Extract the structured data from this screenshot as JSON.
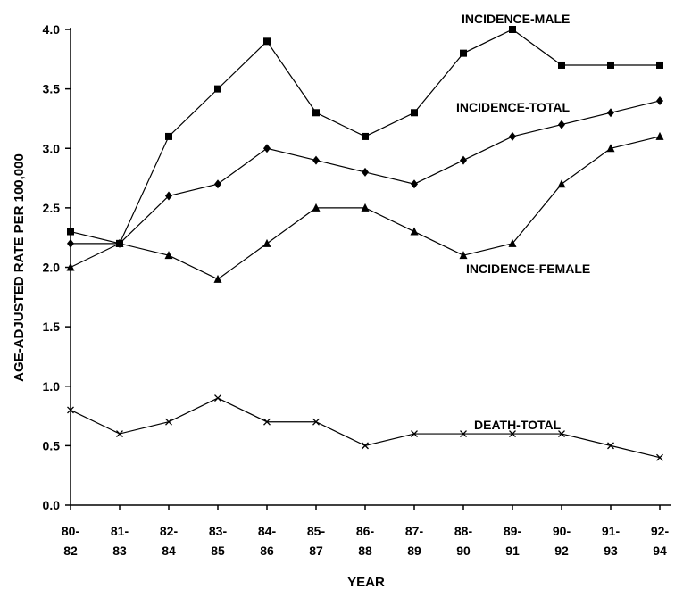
{
  "chart_data": {
    "type": "line",
    "xlabel": "YEAR",
    "ylabel": "AGE-ADJUSTED RATE PER 100,000",
    "ylim": [
      0,
      4.0
    ],
    "yticks": [
      "0.0",
      "0.5",
      "1.0",
      "1.5",
      "2.0",
      "2.5",
      "3.0",
      "3.5",
      "4.0"
    ],
    "categories": [
      [
        "80-",
        "82"
      ],
      [
        "81-",
        "83"
      ],
      [
        "82-",
        "84"
      ],
      [
        "83-",
        "85"
      ],
      [
        "84-",
        "86"
      ],
      [
        "85-",
        "87"
      ],
      [
        "86-",
        "88"
      ],
      [
        "87-",
        "89"
      ],
      [
        "88-",
        "90"
      ],
      [
        "89-",
        "91"
      ],
      [
        "90-",
        "92"
      ],
      [
        "91-",
        "93"
      ],
      [
        "92-",
        "94"
      ]
    ],
    "grid": false,
    "legend": "labels placed next to each line",
    "series": [
      {
        "name": "INCIDENCE-MALE",
        "marker": "square",
        "values": [
          2.3,
          2.2,
          3.1,
          3.5,
          3.9,
          3.3,
          3.1,
          3.3,
          3.8,
          4.0,
          3.7,
          3.7,
          3.7
        ]
      },
      {
        "name": "INCIDENCE-TOTAL",
        "marker": "diamond",
        "values": [
          2.2,
          2.2,
          2.6,
          2.7,
          3.0,
          2.9,
          2.8,
          2.7,
          2.9,
          3.1,
          3.2,
          3.3,
          3.4
        ]
      },
      {
        "name": "INCIDENCE-FEMALE",
        "marker": "triangle",
        "values": [
          2.0,
          2.2,
          2.1,
          1.9,
          2.2,
          2.5,
          2.5,
          2.3,
          2.1,
          2.2,
          2.7,
          3.0,
          3.1
        ]
      },
      {
        "name": "DEATH-TOTAL",
        "marker": "x",
        "values": [
          0.8,
          0.6,
          0.7,
          0.9,
          0.7,
          0.7,
          0.5,
          0.6,
          0.6,
          0.6,
          0.6,
          0.5,
          0.4
        ]
      }
    ]
  }
}
